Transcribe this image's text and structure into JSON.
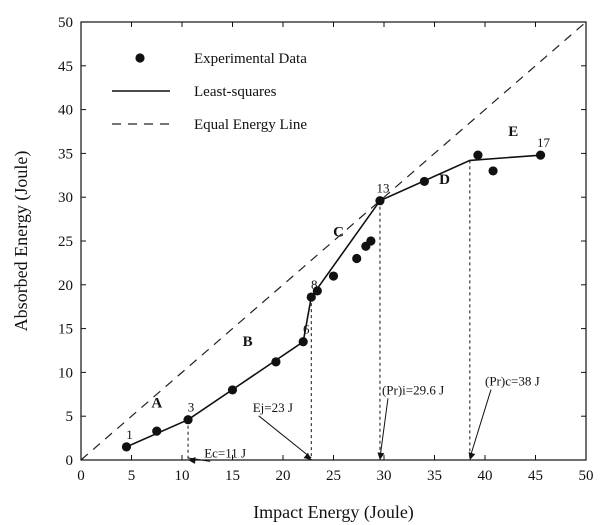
{
  "chart_data": {
    "type": "scatter",
    "xlabel": "Impact Energy (Joule)",
    "ylabel": "Absorbed Energy  (Joule)",
    "xlim": [
      0,
      50
    ],
    "ylim": [
      0,
      50
    ],
    "xticks": [
      0,
      5,
      10,
      15,
      20,
      25,
      30,
      35,
      40,
      45,
      50
    ],
    "yticks": [
      0,
      5,
      10,
      15,
      20,
      25,
      30,
      35,
      40,
      45,
      50
    ],
    "grid": false,
    "legend_position": "top-left",
    "legend": [
      {
        "label": "Experimental Data",
        "style": "marker"
      },
      {
        "label": "Least-squares",
        "style": "solid"
      },
      {
        "label": "Equal Energy Line",
        "style": "dashed"
      }
    ],
    "series": [
      {
        "name": "Experimental Data",
        "style": "marker",
        "points": [
          {
            "x": 4.5,
            "y": 1.5
          },
          {
            "x": 7.5,
            "y": 3.3
          },
          {
            "x": 10.6,
            "y": 4.6
          },
          {
            "x": 15.0,
            "y": 8.0
          },
          {
            "x": 19.3,
            "y": 11.2
          },
          {
            "x": 22.0,
            "y": 13.5
          },
          {
            "x": 22.8,
            "y": 18.6
          },
          {
            "x": 23.4,
            "y": 19.3
          },
          {
            "x": 25.0,
            "y": 21.0
          },
          {
            "x": 27.3,
            "y": 23.0
          },
          {
            "x": 28.2,
            "y": 24.4
          },
          {
            "x": 28.7,
            "y": 25.0
          },
          {
            "x": 29.6,
            "y": 29.6
          },
          {
            "x": 34.0,
            "y": 31.8
          },
          {
            "x": 39.3,
            "y": 34.8
          },
          {
            "x": 40.8,
            "y": 33.0
          },
          {
            "x": 45.5,
            "y": 34.8
          }
        ]
      },
      {
        "name": "Least-squares",
        "style": "solid",
        "points": [
          {
            "x": 4.5,
            "y": 1.5
          },
          {
            "x": 10.6,
            "y": 4.6
          },
          {
            "x": 22.0,
            "y": 13.5
          },
          {
            "x": 22.8,
            "y": 18.6
          },
          {
            "x": 29.6,
            "y": 29.6
          },
          {
            "x": 38.5,
            "y": 34.2
          },
          {
            "x": 45.5,
            "y": 34.8
          }
        ]
      },
      {
        "name": "Equal Energy Line",
        "style": "dashed",
        "points": [
          {
            "x": 0,
            "y": 0
          },
          {
            "x": 50,
            "y": 50
          }
        ]
      }
    ],
    "point_labels": [
      {
        "text": "1",
        "x": 4.5,
        "y": 1.5
      },
      {
        "text": "3",
        "x": 10.6,
        "y": 4.6
      },
      {
        "text": "6",
        "x": 22.0,
        "y": 13.5
      },
      {
        "text": "8",
        "x": 22.8,
        "y": 18.6
      },
      {
        "text": "13",
        "x": 29.6,
        "y": 29.6
      },
      {
        "text": "17",
        "x": 45.5,
        "y": 34.8
      }
    ],
    "regions": [
      {
        "text": "A",
        "x": 7.5,
        "y": 6.0
      },
      {
        "text": "B",
        "x": 16.5,
        "y": 13.0
      },
      {
        "text": "C",
        "x": 25.5,
        "y": 25.5
      },
      {
        "text": "D",
        "x": 36.0,
        "y": 31.5
      },
      {
        "text": "E",
        "x": 42.8,
        "y": 37.0
      }
    ],
    "reference_lines": [
      {
        "x": 10.6,
        "y": 4.6
      },
      {
        "x": 22.8,
        "y": 18.6
      },
      {
        "x": 29.6,
        "y": 29.6
      },
      {
        "x": 38.5,
        "y": 34.2
      }
    ],
    "annotations": [
      {
        "text": "Ec=11 J",
        "target_x": 10.6,
        "text_x": 12.2,
        "text_y": 0.3
      },
      {
        "text": "Ej=23 J",
        "target_x": 22.8,
        "text_x": 17.0,
        "text_y": 5.5
      },
      {
        "text": "(Pr)i=29.6 J",
        "target_x": 29.6,
        "text_x": 29.8,
        "text_y": 7.5
      },
      {
        "text": "(Pr)c=38 J",
        "target_x": 38.5,
        "text_x": 40.0,
        "text_y": 8.5
      }
    ]
  }
}
